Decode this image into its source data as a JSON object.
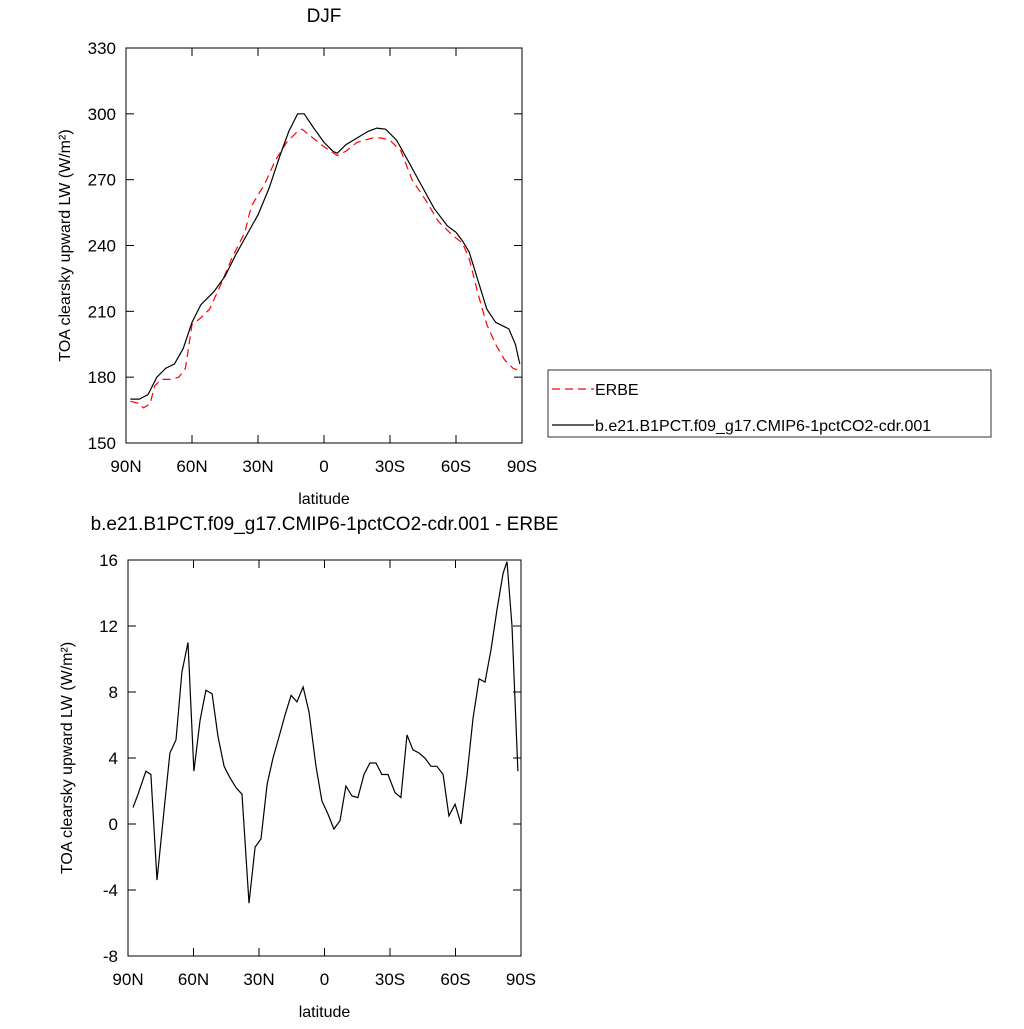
{
  "chart_data": [
    {
      "type": "line",
      "title": "DJF",
      "xlabel": "latitude",
      "ylabel": "TOA clearsky upward LW (W/m²)",
      "xlim": [
        90,
        -90
      ],
      "xticks": [
        {
          "value": 90,
          "label": "90N"
        },
        {
          "value": 60,
          "label": "60N"
        },
        {
          "value": 30,
          "label": "30N"
        },
        0,
        {
          "value": -30,
          "label": "30S"
        },
        {
          "value": -60,
          "label": "60S"
        },
        {
          "value": -90,
          "label": "90S"
        }
      ],
      "ylim": [
        150,
        330
      ],
      "yticks": [
        150,
        180,
        210,
        240,
        270,
        300,
        330
      ],
      "legend": "right",
      "series": [
        {
          "name": "ERBE",
          "color": "#ff0000",
          "dash": true,
          "x": [
            88,
            84,
            82,
            79,
            77,
            74,
            70,
            66,
            63,
            60,
            56,
            52,
            47,
            42,
            36,
            33,
            27,
            22,
            17,
            12,
            10,
            5,
            0,
            -6,
            -10,
            -15,
            -22,
            -26,
            -30,
            -35,
            -40,
            -46,
            -52,
            -58,
            -63,
            -66,
            -70,
            -74,
            -78,
            -82,
            -86,
            -89
          ],
          "values": [
            169,
            168,
            166,
            168,
            176,
            179,
            179,
            180,
            184,
            204,
            207,
            211,
            222,
            234,
            246,
            258,
            268,
            279,
            287,
            292,
            293,
            289,
            285,
            281,
            283,
            287,
            289,
            289,
            288,
            283,
            270,
            261,
            251,
            245,
            241,
            234,
            218,
            204,
            195,
            188,
            184,
            183
          ]
        },
        {
          "name": "b.e21.B1PCT.f09_g17.CMIP6-1pctCO2-cdr.001",
          "color": "#000000",
          "dash": false,
          "x": [
            88,
            84,
            80,
            76,
            72,
            68,
            64,
            60,
            56,
            50,
            45,
            40,
            35,
            30,
            25,
            20,
            16,
            12,
            9,
            5,
            0,
            -4,
            -6,
            -10,
            -15,
            -20,
            -24,
            -28,
            -33,
            -38,
            -44,
            -50,
            -56,
            -60,
            -63,
            -66,
            -70,
            -74,
            -78,
            -82,
            -84,
            -87,
            -89
          ],
          "values": [
            170,
            170,
            172,
            180,
            184,
            186,
            193,
            205,
            213,
            219,
            226,
            236,
            245,
            254,
            266,
            281,
            292,
            300,
            300,
            294,
            287,
            283,
            282,
            286,
            289,
            292,
            293.5,
            293,
            288,
            279,
            268,
            257,
            249,
            246,
            242,
            237,
            224,
            211,
            205,
            203,
            202,
            195,
            186
          ]
        }
      ]
    },
    {
      "type": "line",
      "title": "b.e21.B1PCT.f09_g17.CMIP6-1pctCO2-cdr.001 - ERBE",
      "xlabel": "latitude",
      "ylabel": "TOA clearsky upward LW (W/m²)",
      "xlim": [
        90,
        -90
      ],
      "xticks": [
        {
          "value": 90,
          "label": "90N"
        },
        {
          "value": 60,
          "label": "60N"
        },
        {
          "value": 30,
          "label": "30N"
        },
        0,
        {
          "value": -30,
          "label": "30S"
        },
        {
          "value": -60,
          "label": "60S"
        },
        {
          "value": -90,
          "label": "90S"
        }
      ],
      "ylim": [
        -8,
        16
      ],
      "yticks": [
        -8,
        -4,
        0,
        4,
        8,
        12,
        16
      ],
      "series": [
        {
          "color": "#000000",
          "dash": false,
          "x": [
            87.7,
            85.4,
            81.8,
            79.5,
            76.7,
            73.5,
            70.8,
            68.0,
            65.3,
            62.5,
            59.8,
            57.0,
            54.3,
            51.5,
            48.8,
            46.0,
            43.3,
            40.5,
            37.8,
            34.6,
            31.8,
            29.1,
            26.3,
            23.6,
            20.8,
            18.1,
            15.3,
            12.6,
            9.8,
            7.1,
            3.9,
            1.2,
            -1.6,
            -4.3,
            -7.1,
            -9.8,
            -12.6,
            -15.3,
            -18.1,
            -20.8,
            -23.6,
            -26.3,
            -29.1,
            -32.3,
            -35.0,
            -37.8,
            -40.5,
            -43.3,
            -46.0,
            -48.8,
            -51.5,
            -54.3,
            -57.0,
            -59.8,
            -62.5,
            -65.3,
            -68.0,
            -70.8,
            -73.5,
            -76.3,
            -79.0,
            -81.8,
            -83.6,
            -85.9,
            -88.6
          ],
          "values": [
            1.0,
            1.8,
            3.2,
            3.0,
            -3.4,
            0.8,
            4.3,
            5.1,
            9.2,
            11.0,
            3.2,
            6.3,
            8.1,
            7.9,
            5.3,
            3.5,
            2.8,
            2.2,
            1.8,
            -4.8,
            -1.4,
            -0.9,
            2.4,
            4.0,
            5.3,
            6.6,
            7.8,
            7.4,
            8.3,
            6.8,
            3.5,
            1.4,
            0.6,
            -0.3,
            0.2,
            2.3,
            1.7,
            1.6,
            3.0,
            3.7,
            3.7,
            3.0,
            3.0,
            1.9,
            1.6,
            5.4,
            4.5,
            4.3,
            4.0,
            3.5,
            3.5,
            3.0,
            0.5,
            1.2,
            0.0,
            3.0,
            6.4,
            8.8,
            8.6,
            10.6,
            13.0,
            15.2,
            15.9,
            12.0,
            3.2
          ]
        }
      ]
    }
  ]
}
